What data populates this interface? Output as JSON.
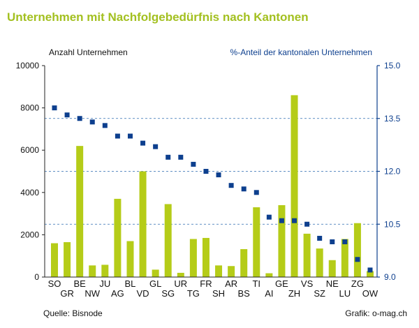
{
  "title": "Unternehmen mit Nachfolgebedürfnis nach Kantonen",
  "source": "Quelle: Bisnode",
  "credit": "Grafik: o-mag.ch",
  "colors": {
    "title": "#a3c020",
    "bar": "#b5cc18",
    "marker": "#0d3f8e",
    "right_axis": "#0d3f8e",
    "grid": "#2a6ab0"
  },
  "chart_data": {
    "type": "bar",
    "categories": [
      "SO",
      "GR",
      "BE",
      "NW",
      "JU",
      "AG",
      "BL",
      "VD",
      "GL",
      "SG",
      "UR",
      "TG",
      "FR",
      "SH",
      "AR",
      "BS",
      "TI",
      "AI",
      "GE",
      "ZH",
      "VS",
      "SZ",
      "NE",
      "LU",
      "ZG",
      "OW"
    ],
    "category_rows": [
      0,
      1,
      0,
      1,
      0,
      1,
      0,
      1,
      0,
      1,
      0,
      1,
      0,
      1,
      0,
      1,
      0,
      1,
      0,
      1,
      0,
      1,
      0,
      1,
      0,
      1
    ],
    "series": [
      {
        "axis": "left",
        "mark": "bar",
        "values": [
          1600,
          1650,
          6200,
          550,
          580,
          3700,
          1700,
          5000,
          350,
          3450,
          200,
          1800,
          1850,
          550,
          520,
          1320,
          3300,
          180,
          3400,
          8600,
          2050,
          1350,
          800,
          1800,
          2550,
          280
        ]
      },
      {
        "axis": "right",
        "mark": "square-marker",
        "values": [
          13.8,
          13.6,
          13.5,
          13.4,
          13.3,
          13.0,
          13.0,
          12.8,
          12.7,
          12.4,
          12.4,
          12.2,
          12.0,
          11.9,
          11.6,
          11.5,
          11.4,
          10.7,
          10.6,
          10.6,
          10.5,
          10.1,
          10.0,
          10.0,
          9.5,
          9.2
        ]
      }
    ],
    "left_axis": {
      "label": "Anzahl Unternehmen",
      "ylim": [
        0,
        10000
      ],
      "ticks": [
        0,
        2000,
        4000,
        6000,
        8000,
        10000
      ],
      "tick_labels": [
        "0",
        "2000",
        "4000",
        "6000",
        "8000",
        "10000"
      ]
    },
    "right_axis": {
      "label": "%-Anteil der kantonalen Unternehmen",
      "ylim": [
        9.0,
        15.0
      ],
      "ticks": [
        9.0,
        10.5,
        12.0,
        13.5,
        15.0
      ],
      "tick_labels": [
        "9.0",
        "10.5",
        "12.0",
        "13.5",
        "15.0"
      ]
    },
    "grid": "dashed horizontal at right-axis ticks",
    "legend": "none"
  }
}
